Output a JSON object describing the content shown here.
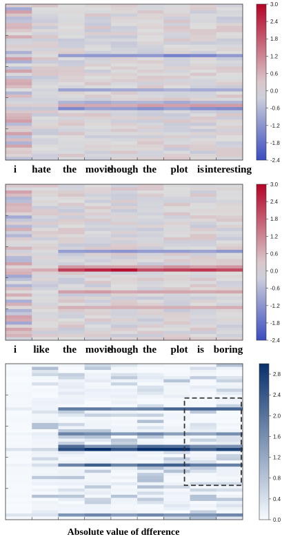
{
  "chart_data": [
    {
      "type": "heatmap",
      "colormap": "diverging blue-white-red",
      "colors": {
        "low": "#3b4cc0",
        "mid": "#dddddd",
        "high": "#b40426"
      },
      "color_range": [
        -2.4,
        3.0
      ],
      "colorbar_ticks": [
        "3.0",
        "2.4",
        "1.8",
        "1.2",
        "0.6",
        "0.0",
        "-0.6",
        "-1.2",
        "-1.8",
        "-2.4"
      ],
      "x_tick_labels": [
        "i",
        "hate",
        "the",
        "movie",
        "though",
        "the",
        "plot",
        "is",
        "interesting"
      ],
      "rows": 50,
      "highlights": [
        {
          "row": 16,
          "value": -1.4
        },
        {
          "row": 27,
          "value": -0.9
        },
        {
          "row": 31,
          "value": -0.8
        },
        {
          "row": 32,
          "value": 0.9
        },
        {
          "row": 33,
          "value": -1.3
        }
      ],
      "grid": false
    },
    {
      "type": "heatmap",
      "colormap": "diverging blue-white-red",
      "colors": {
        "low": "#3b4cc0",
        "mid": "#dddddd",
        "high": "#b40426"
      },
      "color_range": [
        -2.4,
        3.0
      ],
      "colorbar_ticks": [
        "3.0",
        "2.4",
        "1.8",
        "1.2",
        "0.6",
        "0.0",
        "-0.6",
        "-1.2",
        "-1.8",
        "-2.4"
      ],
      "x_tick_labels": [
        "i",
        "like",
        "the",
        "movie",
        "though",
        "the",
        "plot",
        "is",
        "boring"
      ],
      "rows": 50,
      "highlights": [
        {
          "row": 21,
          "value": -1.2
        },
        {
          "row": 26,
          "value": 1.0
        },
        {
          "row": 27,
          "value": 2.6
        },
        {
          "row": 34,
          "value": 0.9
        },
        {
          "row": 39,
          "value": 0.6
        }
      ],
      "grid": false
    },
    {
      "type": "heatmap",
      "colormap": "sequential blues",
      "colors": {
        "low": "#f7fbff",
        "high": "#08306b"
      },
      "color_range": [
        0.0,
        3.0
      ],
      "colorbar_ticks": [
        "2.8",
        "2.4",
        "2.0",
        "1.6",
        "1.2",
        "0.8",
        "0.4",
        "0.0"
      ],
      "xlabel": "Absolute value of dfference",
      "rows": 50,
      "highlights": [
        {
          "row": 14,
          "value": 2.2
        },
        {
          "row": 22,
          "value": 1.6
        },
        {
          "row": 26,
          "value": 2.0
        },
        {
          "row": 27,
          "value": 2.9
        },
        {
          "row": 32,
          "value": 2.3
        },
        {
          "row": 48,
          "value": 1.7
        }
      ],
      "dashed_box": {
        "columns": [
          7,
          8
        ],
        "rows": [
          11,
          39
        ]
      },
      "grid": false
    }
  ]
}
